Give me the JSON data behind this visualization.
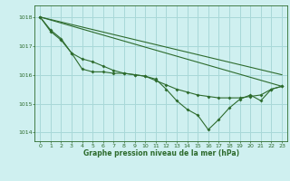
{
  "background_color": "#cff0f0",
  "grid_color": "#a8d8d8",
  "line_color": "#2d6b2d",
  "title": "Graphe pression niveau de la mer (hPa)",
  "xlim": [
    -0.5,
    23.5
  ],
  "ylim": [
    1013.7,
    1018.4
  ],
  "yticks": [
    1014,
    1015,
    1016,
    1017,
    1018
  ],
  "xticks": [
    0,
    1,
    2,
    3,
    4,
    5,
    6,
    7,
    8,
    9,
    10,
    11,
    12,
    13,
    14,
    15,
    16,
    17,
    18,
    19,
    20,
    21,
    22,
    23
  ],
  "series1_straight": {
    "x": [
      0,
      23
    ],
    "y": [
      1018.0,
      1016.0
    ]
  },
  "series2_straight": {
    "x": [
      0,
      23
    ],
    "y": [
      1018.0,
      1015.6
    ]
  },
  "series3": {
    "x": [
      0,
      1,
      2,
      3,
      4,
      5,
      6,
      7,
      8,
      9,
      10,
      11,
      12,
      13,
      14,
      15,
      16,
      17,
      18,
      19,
      20,
      21,
      22,
      23
    ],
    "y": [
      1018.0,
      1017.55,
      1017.25,
      1016.75,
      1016.2,
      1016.1,
      1016.1,
      1016.05,
      1016.05,
      1016.0,
      1015.95,
      1015.85,
      1015.5,
      1015.1,
      1014.8,
      1014.6,
      1014.1,
      1014.45,
      1014.85,
      1015.15,
      1015.3,
      1015.1,
      1015.5,
      1015.6
    ]
  },
  "series4": {
    "x": [
      0,
      1,
      2,
      3,
      4,
      5,
      6,
      7,
      8,
      9,
      10,
      11,
      12,
      13,
      14,
      15,
      16,
      17,
      18,
      19,
      20,
      21,
      22,
      23
    ],
    "y": [
      1018.0,
      1017.5,
      1017.2,
      1016.75,
      1016.55,
      1016.45,
      1016.3,
      1016.15,
      1016.05,
      1016.0,
      1015.95,
      1015.8,
      1015.65,
      1015.5,
      1015.4,
      1015.3,
      1015.25,
      1015.2,
      1015.2,
      1015.2,
      1015.25,
      1015.3,
      1015.5,
      1015.6
    ]
  }
}
